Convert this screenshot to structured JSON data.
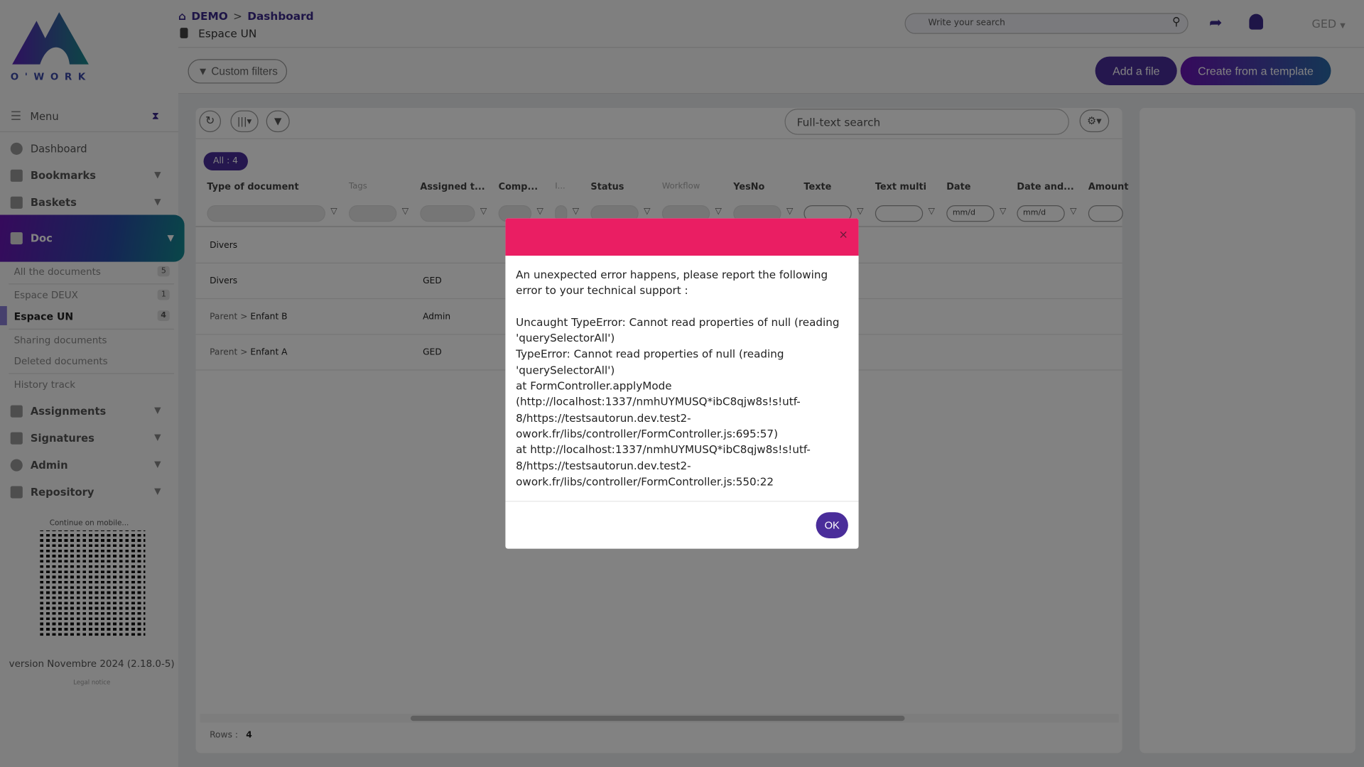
{
  "app": {
    "logo_text": "O'WORK",
    "brand_color": "#4a2d9a",
    "error_color": "#ea1e63"
  },
  "breadcrumb": {
    "home": "DEMO",
    "separator": ">",
    "current": "Dashboard"
  },
  "subtitle": "Espace UN",
  "header": {
    "search_placeholder": "Write your search",
    "module": "GED"
  },
  "toolbar": {
    "custom_filters": "Custom filters",
    "add_file": "Add a file",
    "create_template": "Create from a template"
  },
  "sidebar": {
    "menu": "Menu",
    "items": [
      {
        "label": "Dashboard"
      },
      {
        "label": "Bookmarks"
      },
      {
        "label": "Baskets"
      },
      {
        "label": "Doc"
      },
      {
        "label": "Assignments"
      },
      {
        "label": "Signatures"
      },
      {
        "label": "Admin"
      },
      {
        "label": "Repository"
      }
    ],
    "doc_items": [
      {
        "label": "All the documents",
        "count": "5"
      },
      {
        "label": "Espace DEUX",
        "count": "1"
      },
      {
        "label": "Espace UN",
        "count": "4"
      },
      {
        "label": "Sharing documents"
      },
      {
        "label": "Deleted documents"
      },
      {
        "label": "History track"
      }
    ],
    "mobile": "Continue on mobile...",
    "version": "version Novembre 2024 (2.18.0-5)",
    "legal": "Legal notice"
  },
  "grid": {
    "fulltext_placeholder": "Full-text search",
    "all_badge": "All : 4",
    "columns": [
      "Type of document",
      "Tags",
      "Assigned t...",
      "Comp...",
      "I...",
      "Status",
      "Workflow",
      "YesNo",
      "Texte",
      "Text multi",
      "Date",
      "Date and...",
      "Amount"
    ],
    "date_placeholder": "mm/d",
    "rows": [
      {
        "type": "Divers",
        "parent": "",
        "assigned": ""
      },
      {
        "type": "Divers",
        "parent": "",
        "assigned": "GED"
      },
      {
        "type": "Enfant B",
        "parent": "Parent >",
        "assigned": "Admin"
      },
      {
        "type": "Enfant A",
        "parent": "Parent >",
        "assigned": "GED"
      }
    ],
    "rows_label": "Rows :",
    "rows_count": "4"
  },
  "modal": {
    "close": "×",
    "message": "An unexpected error happens, please report the following error to your technical support :\n\nUncaught TypeError: Cannot read properties of null (reading 'querySelectorAll')\nTypeError: Cannot read properties of null (reading 'querySelectorAll')\nat FormController.applyMode (http://localhost:1337/nmhUYMUSQ*ibC8qjw8s!s!utf-8/https://testsautorun.dev.test2-owork.fr/libs/controller/FormController.js:695:57)\nat http://localhost:1337/nmhUYMUSQ*ibC8qjw8s!s!utf-8/https://testsautorun.dev.test2-owork.fr/libs/controller/FormController.js:550:22",
    "ok": "OK"
  }
}
